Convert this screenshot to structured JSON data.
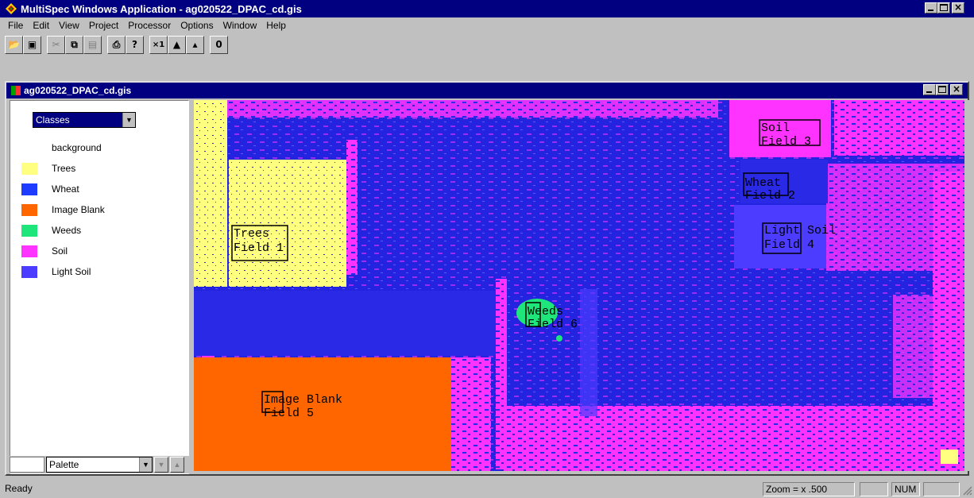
{
  "app": {
    "title": "MultiSpec Windows Application - ag020522_DPAC_cd.gis"
  },
  "menu": [
    "File",
    "Edit",
    "View",
    "Project",
    "Processor",
    "Options",
    "Window",
    "Help"
  ],
  "toolbar": {
    "groups": [
      [
        {
          "name": "open-icon",
          "glyph": "📂"
        },
        {
          "name": "save-icon",
          "glyph": "▣"
        }
      ],
      [
        {
          "name": "cut-icon",
          "glyph": "✂"
        },
        {
          "name": "copy-icon",
          "glyph": "⧉"
        },
        {
          "name": "paste-icon",
          "glyph": "▤"
        }
      ],
      [
        {
          "name": "print-icon",
          "glyph": "⎙"
        },
        {
          "name": "help-icon",
          "glyph": "?"
        }
      ],
      [
        {
          "name": "zoom-x1-icon",
          "glyph": "×1"
        },
        {
          "name": "zoom-in-icon",
          "glyph": "▲"
        },
        {
          "name": "zoom-out-icon",
          "glyph": "▴"
        }
      ],
      [
        {
          "name": "overlay-icon",
          "glyph": "0"
        }
      ]
    ]
  },
  "document": {
    "title": "ag020522_DPAC_cd.gis",
    "legend": {
      "selector": "Classes",
      "items": [
        {
          "label": "background",
          "color": "#ffffff"
        },
        {
          "label": "Trees",
          "color": "#ffff80"
        },
        {
          "label": "Wheat",
          "color": "#1e3cff"
        },
        {
          "label": "Image Blank",
          "color": "#ff6600"
        },
        {
          "label": "Weeds",
          "color": "#1ee67a"
        },
        {
          "label": "Soil",
          "color": "#ff33ff"
        },
        {
          "label": "Light Soil",
          "color": "#4b3cff"
        }
      ],
      "palette": "Palette"
    },
    "fields": [
      {
        "line1": "Trees",
        "line2": "Field 1"
      },
      {
        "line1": "Wheat",
        "line2": "Field 2"
      },
      {
        "line1": "Soil",
        "line2": "Field 3"
      },
      {
        "line1": "Light Soil",
        "line2": "Field 4"
      },
      {
        "line1": "Image Blank",
        "line2": "Field 5"
      },
      {
        "line1": "Weeds",
        "line2": "Field 6"
      }
    ]
  },
  "status": {
    "text": "Ready",
    "zoom": "Zoom = x .500",
    "num": "NUM"
  }
}
